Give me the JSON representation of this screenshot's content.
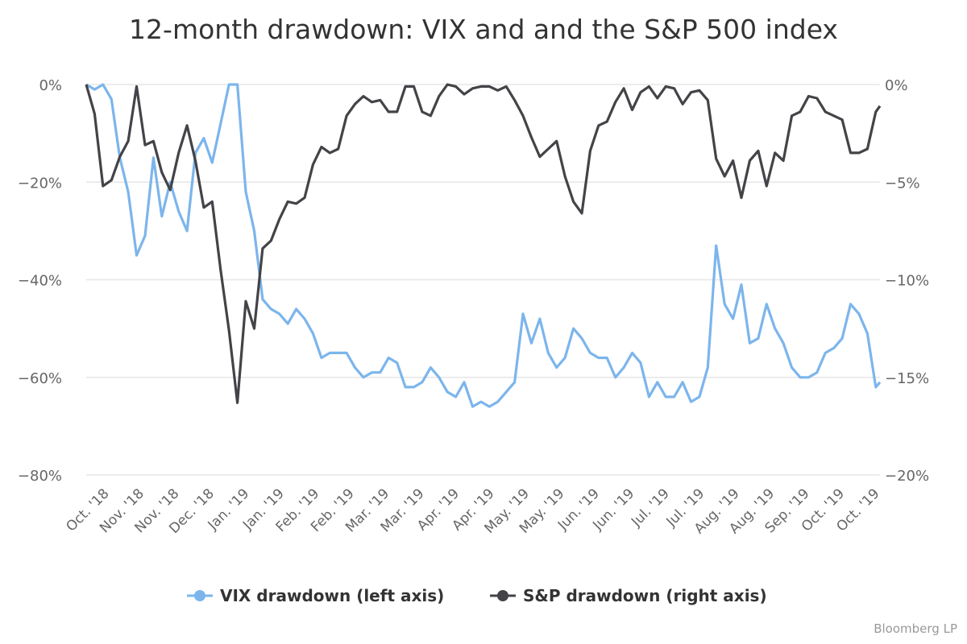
{
  "chart_data": {
    "type": "line",
    "title": "12-month drawdown: VIX and and the S&P 500 index",
    "credit": "Bloomberg LP",
    "x_tick_labels": [
      "Oct. '18",
      "Nov. '18",
      "Nov. '18",
      "Dec. '18",
      "Jan. '19",
      "Jan. '19",
      "Feb. '19",
      "Feb. '19",
      "Mar. '19",
      "Mar. '19",
      "Apr. '19",
      "Apr. '19",
      "May. '19",
      "May. '19",
      "Jun. '19",
      "Jun. '19",
      "Jul. '19",
      "Jul. '19",
      "Aug. '19",
      "Aug. '19",
      "Sep. '19",
      "Oct. '19",
      "Oct. '19"
    ],
    "y_left": {
      "ticks": [
        0,
        -20,
        -40,
        -60,
        -80
      ],
      "tick_labels": [
        "0%",
        "−20%",
        "−40%",
        "−60%",
        "−80%"
      ],
      "range": [
        -80,
        0
      ],
      "unit": "%"
    },
    "y_right": {
      "ticks": [
        0,
        -5,
        -10,
        -15,
        -20
      ],
      "tick_labels": [
        "0%",
        "−5%",
        "−10%",
        "−15%",
        "−20%"
      ],
      "range": [
        -20,
        0
      ],
      "unit": "%"
    },
    "grid": true,
    "legend_position": "bottom",
    "x": [
      "2018-10-02",
      "2018-10-06",
      "2018-10-10",
      "2018-10-14",
      "2018-10-18",
      "2018-10-22",
      "2018-10-26",
      "2018-10-30",
      "2018-11-03",
      "2018-11-07",
      "2018-11-11",
      "2018-11-15",
      "2018-11-19",
      "2018-11-23",
      "2018-11-27",
      "2018-12-01",
      "2018-12-05",
      "2018-12-09",
      "2018-12-13",
      "2018-12-17",
      "2018-12-21",
      "2018-12-25",
      "2018-12-29",
      "2019-01-02",
      "2019-01-06",
      "2019-01-10",
      "2019-01-14",
      "2019-01-18",
      "2019-01-22",
      "2019-01-26",
      "2019-01-30",
      "2019-02-03",
      "2019-02-07",
      "2019-02-11",
      "2019-02-15",
      "2019-02-19",
      "2019-02-23",
      "2019-02-27",
      "2019-03-03",
      "2019-03-07",
      "2019-03-11",
      "2019-03-15",
      "2019-03-19",
      "2019-03-23",
      "2019-03-27",
      "2019-03-31",
      "2019-04-04",
      "2019-04-08",
      "2019-04-12",
      "2019-04-16",
      "2019-04-20",
      "2019-04-24",
      "2019-04-28",
      "2019-05-02",
      "2019-05-06",
      "2019-05-10",
      "2019-05-14",
      "2019-05-18",
      "2019-05-22",
      "2019-05-26",
      "2019-05-30",
      "2019-06-03",
      "2019-06-07",
      "2019-06-11",
      "2019-06-15",
      "2019-06-19",
      "2019-06-23",
      "2019-06-27",
      "2019-07-01",
      "2019-07-05",
      "2019-07-09",
      "2019-07-13",
      "2019-07-17",
      "2019-07-21",
      "2019-07-25",
      "2019-07-29",
      "2019-08-02",
      "2019-08-06",
      "2019-08-10",
      "2019-08-14",
      "2019-08-18",
      "2019-08-22",
      "2019-08-26",
      "2019-08-30",
      "2019-09-03",
      "2019-09-07",
      "2019-09-11",
      "2019-09-15",
      "2019-09-19",
      "2019-09-23",
      "2019-09-27",
      "2019-10-01",
      "2019-10-05",
      "2019-10-09",
      "2019-10-13",
      "2019-10-15"
    ],
    "series": [
      {
        "name": "VIX drawdown (left axis)",
        "axis": "left",
        "color": "#7cb5ec",
        "values": [
          0,
          -1,
          0,
          -3,
          -15,
          -22,
          -35,
          -31,
          -15,
          -27,
          -20,
          -26,
          -30,
          -14,
          -11,
          -16,
          -8,
          0,
          0,
          -22,
          -30,
          -44,
          -46,
          -47,
          -49,
          -46,
          -48,
          -51,
          -56,
          -55,
          -55,
          -55,
          -58,
          -60,
          -59,
          -59,
          -56,
          -57,
          -62,
          -62,
          -61,
          -58,
          -60,
          -63,
          -64,
          -61,
          -66,
          -65,
          -66,
          -65,
          -63,
          -61,
          -47,
          -53,
          -48,
          -55,
          -58,
          -56,
          -50,
          -52,
          -55,
          -56,
          -56,
          -60,
          -58,
          -55,
          -57,
          -64,
          -61,
          -64,
          -64,
          -61,
          -65,
          -64,
          -58,
          -33,
          -45,
          -48,
          -41,
          -53,
          -52,
          -45,
          -50,
          -53,
          -58,
          -60,
          -60,
          -59,
          -55,
          -54,
          -52,
          -45,
          -47,
          -51,
          -62,
          -61
        ]
      },
      {
        "name": "S&P drawdown (right axis)",
        "axis": "right",
        "color": "#434348",
        "values": [
          0,
          -1.5,
          -5.2,
          -4.9,
          -3.7,
          -2.9,
          -0.1,
          -3.1,
          -2.9,
          -4.5,
          -5.4,
          -3.5,
          -2.1,
          -3.9,
          -6.3,
          -6.0,
          -9.5,
          -12.6,
          -16.3,
          -11.1,
          -12.5,
          -8.4,
          -8.0,
          -6.9,
          -6.0,
          -6.1,
          -5.8,
          -4.1,
          -3.2,
          -3.5,
          -3.3,
          -1.6,
          -1.0,
          -0.6,
          -0.9,
          -0.8,
          -1.4,
          -1.4,
          -0.1,
          -0.1,
          -1.4,
          -1.6,
          -0.6,
          0,
          -0.1,
          -0.5,
          -0.2,
          -0.1,
          -0.1,
          -0.3,
          -0.1,
          -0.8,
          -1.6,
          -2.7,
          -3.7,
          -3.3,
          -2.9,
          -4.7,
          -6.0,
          -6.6,
          -3.4,
          -2.1,
          -1.9,
          -0.9,
          -0.2,
          -1.3,
          -0.4,
          -0.1,
          -0.7,
          -0.1,
          -0.2,
          -1.0,
          -0.4,
          -0.3,
          -0.8,
          -3.8,
          -4.7,
          -3.9,
          -5.8,
          -3.9,
          -3.4,
          -5.2,
          -3.5,
          -3.9,
          -1.6,
          -1.4,
          -0.6,
          -0.7,
          -1.4,
          -1.6,
          -1.8,
          -3.5,
          -3.5,
          -3.3,
          -1.4,
          -1.1
        ]
      }
    ]
  }
}
